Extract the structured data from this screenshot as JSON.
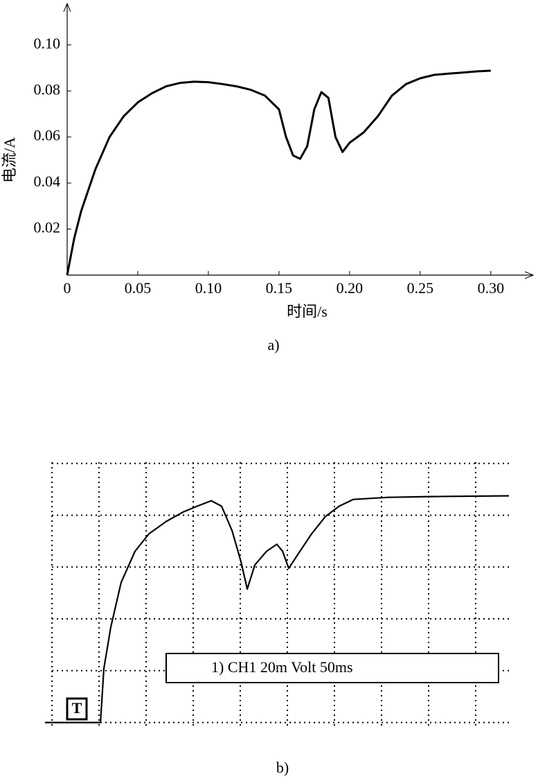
{
  "chart_data": [
    {
      "type": "line",
      "xlabel": "时间/s",
      "ylabel": "电流/A",
      "caption": "a)",
      "color": "#000000",
      "grid": false,
      "x": [
        0,
        0.005,
        0.01,
        0.02,
        0.03,
        0.04,
        0.05,
        0.06,
        0.07,
        0.08,
        0.09,
        0.1,
        0.11,
        0.12,
        0.13,
        0.14,
        0.15,
        0.155,
        0.16,
        0.165,
        0.17,
        0.175,
        0.18,
        0.185,
        0.19,
        0.195,
        0.2,
        0.21,
        0.22,
        0.23,
        0.24,
        0.25,
        0.26,
        0.27,
        0.28,
        0.29,
        0.3
      ],
      "values": [
        0,
        0.016,
        0.028,
        0.046,
        0.06,
        0.069,
        0.075,
        0.079,
        0.082,
        0.0835,
        0.084,
        0.0838,
        0.083,
        0.082,
        0.0805,
        0.078,
        0.072,
        0.06,
        0.052,
        0.0505,
        0.056,
        0.072,
        0.0795,
        0.077,
        0.06,
        0.0535,
        0.0575,
        0.062,
        0.069,
        0.078,
        0.083,
        0.0855,
        0.087,
        0.0875,
        0.088,
        0.0885,
        0.0888
      ],
      "xlim": [
        0,
        0.33
      ],
      "ylim": [
        0,
        0.118
      ],
      "xticks": [
        0,
        0.05,
        {
          "value": 0.1,
          "label": "0.10"
        },
        0.15,
        {
          "value": 0.2,
          "label": "0.20"
        },
        0.25,
        {
          "value": 0.3,
          "label": "0.30"
        }
      ],
      "yticks": [
        0.02,
        0.04,
        0.06,
        0.08,
        {
          "value": 0.1,
          "label": "0.10"
        }
      ]
    },
    {
      "type": "line",
      "caption": "b)",
      "annotation": "1) CH1  20m Volt  50ms",
      "trigger_label": "T",
      "color": "#000000",
      "grid": true,
      "x": [
        -7.4,
        51.5,
        55.1,
        62.5,
        73.5,
        88.2,
        102.9,
        121.3,
        139.7,
        154.4,
        169.1,
        180.1,
        191.2,
        200.7,
        207.4,
        215.4,
        227.9,
        238.9,
        244.9,
        251.5,
        261,
        275.7,
        290.4,
        305.1,
        319.9,
        356.6,
        400.7,
        485.3
      ],
      "values": [
        0,
        0,
        20.8,
        36.8,
        54.1,
        66.1,
        72.8,
        77.6,
        81.3,
        83.5,
        85.6,
        83.5,
        74.1,
        62.1,
        51.5,
        60.8,
        66.1,
        68.8,
        66.1,
        59.5,
        64.8,
        72.8,
        79.5,
        83.5,
        86.1,
        86.9,
        87.2,
        87.5
      ],
      "xlim": [
        -7.4,
        489
      ],
      "ylim": [
        -6,
        101
      ],
      "xticks": [
        0,
        50,
        100,
        150,
        200,
        250,
        300,
        350,
        400,
        450
      ],
      "yticks": [
        0,
        20,
        40,
        60,
        80,
        100
      ]
    }
  ]
}
